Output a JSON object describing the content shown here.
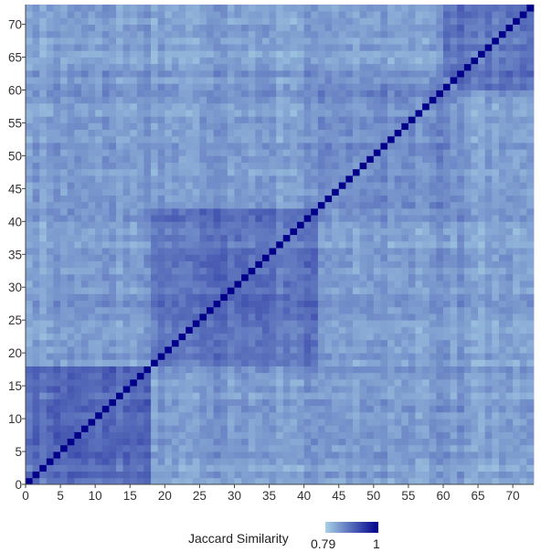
{
  "chart_data": {
    "type": "heatmap",
    "title": "",
    "xlabel": "",
    "ylabel": "",
    "n": 73,
    "xlim": [
      0,
      73
    ],
    "ylim": [
      0,
      73
    ],
    "x_ticks": [
      0,
      5,
      10,
      15,
      20,
      25,
      30,
      35,
      40,
      45,
      50,
      55,
      60,
      65,
      70
    ],
    "y_ticks": [
      0,
      5,
      10,
      15,
      20,
      25,
      30,
      35,
      40,
      45,
      50,
      55,
      60,
      65,
      70
    ],
    "value_range": [
      0.79,
      1
    ],
    "diagonal_value": 1,
    "blocks": [
      {
        "range": [
          0,
          17
        ],
        "within_similarity": 0.89
      },
      {
        "range": [
          18,
          41
        ],
        "within_similarity": 0.885
      },
      {
        "range": [
          42,
          61
        ],
        "within_similarity": 0.855
      },
      {
        "range": [
          60,
          72
        ],
        "within_similarity": 0.885
      }
    ],
    "off_block_similarity": 0.84,
    "colorscale": {
      "low": "#a8d1e6",
      "high": "#00008b"
    },
    "legend": {
      "title": "Jaccard Similarity",
      "min_label": "0.79",
      "max_label": "1",
      "placement": "bottom"
    },
    "grid": false
  }
}
